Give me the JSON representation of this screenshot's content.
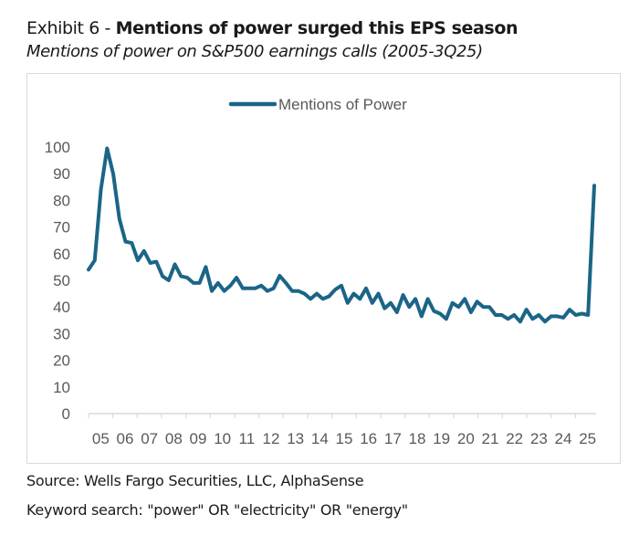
{
  "header": {
    "exhibit_label": "Exhibit 6 - ",
    "title": "Mentions of power surged this EPS season",
    "subtitle": "Mentions of power on S&P500 earnings calls (2005-3Q25)"
  },
  "footer": {
    "source": "Source: Wells Fargo Securities, LLC, AlphaSense",
    "keyword": "Keyword search: \"power\" OR \"electricity\" OR \"energy\""
  },
  "colors": {
    "line": "#1b6587",
    "axis_text": "#595959",
    "axis_line": "#d9d9d9"
  },
  "chart_data": {
    "type": "line",
    "title": "Mentions of power surged this EPS season",
    "subtitle": "Mentions of power on S&P500 earnings calls (2005-3Q25)",
    "xlabel": "",
    "ylabel": "",
    "ylim": [
      0,
      100
    ],
    "yticks": [
      "0",
      "10",
      "20",
      "30",
      "40",
      "50",
      "60",
      "70",
      "80",
      "90",
      "100"
    ],
    "xticks": [
      "05",
      "06",
      "07",
      "08",
      "09",
      "10",
      "11",
      "12",
      "13",
      "14",
      "15",
      "16",
      "17",
      "18",
      "19",
      "20",
      "21",
      "22",
      "23",
      "24",
      "25"
    ],
    "x_frequency": "quarterly",
    "x_start": "2005Q1",
    "x_end": "2025Q3",
    "grid": false,
    "legend_position": "top-center",
    "series": [
      {
        "name": "Mentions of Power",
        "values": [
          54,
          57.5,
          84,
          99.5,
          90,
          73,
          64.5,
          64,
          57.5,
          61,
          56.5,
          57,
          51.5,
          50,
          56,
          51.5,
          51,
          49,
          49,
          55,
          46,
          49,
          46,
          48,
          51,
          47,
          47,
          47,
          48,
          46,
          47,
          51.7,
          49,
          46,
          46,
          45,
          43,
          45,
          43,
          44,
          46.5,
          48,
          41.5,
          45,
          43,
          47,
          41.5,
          45,
          39.5,
          41.5,
          38,
          44.5,
          40,
          43,
          36.5,
          43,
          38.5,
          37.5,
          35.5,
          41.5,
          40,
          43,
          38,
          42,
          40,
          40,
          37,
          37,
          35.5,
          37,
          34.5,
          39,
          35.5,
          37,
          34.5,
          36.5,
          36.5,
          36,
          39,
          37,
          37.5,
          37,
          85.5
        ]
      }
    ]
  }
}
